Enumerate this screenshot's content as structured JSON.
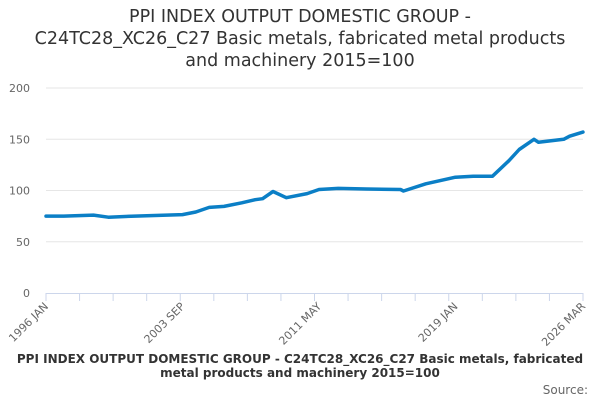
{
  "chart_data": {
    "type": "line",
    "title": "PPI INDEX OUTPUT DOMESTIC GROUP - C24TC28_XC26_C27 Basic metals, fabricated metal products and machinery 2015=100",
    "title_lines": [
      "PPI INDEX OUTPUT DOMESTIC GROUP -",
      "C24TC28_XC26_C27 Basic metals, fabricated metal products",
      "and machinery 2015=100"
    ],
    "xlabel": "",
    "ylabel": "",
    "ylim": [
      0,
      200
    ],
    "yticks": [
      "0",
      "50",
      "100",
      "150",
      "200"
    ],
    "xlim": [
      "1996 JAN",
      "2026 MAR"
    ],
    "xtick_labels": [
      "1996 JAN",
      "2003 SEP",
      "2011 MAY",
      "2019 JAN",
      "2026 MAR"
    ],
    "grid": true,
    "line_color": "#0b7fc6",
    "series": [
      {
        "points": [
          [
            "1996 JAN",
            75
          ],
          [
            "1997 JAN",
            75
          ],
          [
            "1998 SEP",
            76
          ],
          [
            "1999 JUL",
            74
          ],
          [
            "2001 JAN",
            75
          ],
          [
            "2003 SEP",
            76.5
          ],
          [
            "2004 JUN",
            79
          ],
          [
            "2005 MAR",
            83.5
          ],
          [
            "2006 JAN",
            84.5
          ],
          [
            "2007 JAN",
            88
          ],
          [
            "2007 OCT",
            91
          ],
          [
            "2008 MAR",
            92
          ],
          [
            "2008 OCT",
            99
          ],
          [
            "2009 JUL",
            93
          ],
          [
            "2010 SEP",
            97
          ],
          [
            "2011 MAY",
            101
          ],
          [
            "2012 JUN",
            102
          ],
          [
            "2014 JAN",
            101.5
          ],
          [
            "2015 DEC",
            101
          ],
          [
            "2016 FEB",
            99.5
          ],
          [
            "2017 MAY",
            106.5
          ],
          [
            "2019 JAN",
            113
          ],
          [
            "2020 JAN",
            114
          ],
          [
            "2021 FEB",
            114
          ],
          [
            "2022 JAN",
            129
          ],
          [
            "2022 AUG",
            140
          ],
          [
            "2023 JUN",
            150
          ],
          [
            "2023 SEP",
            147
          ],
          [
            "2025 FEB",
            150
          ],
          [
            "2025 JUN",
            153
          ],
          [
            "2026 MAR",
            157
          ]
        ]
      }
    ]
  },
  "caption": "PPI INDEX OUTPUT DOMESTIC GROUP - C24TC28_XC26_C27 Basic metals, fabricated metal products and machinery 2015=100",
  "source_label": "Source:"
}
